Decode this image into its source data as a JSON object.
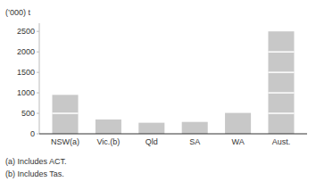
{
  "chart_data": {
    "type": "bar",
    "y_label": "(’000) t",
    "categories": [
      "NSW(a)",
      "Vic.(b)",
      "Qld",
      "SA",
      "WA",
      "Aust."
    ],
    "values": [
      950,
      350,
      270,
      290,
      510,
      2500
    ],
    "segment_lines": [
      [
        500
      ],
      [],
      [],
      [],
      [],
      [
        500,
        1000,
        1500,
        2000
      ]
    ],
    "color": "#c8c8c8",
    "ylim": [
      0,
      2700
    ],
    "yticks": [
      0,
      500,
      1000,
      1500,
      2000,
      2500
    ],
    "grid": false,
    "annotations": [
      "(a) Includes ACT.",
      "(b) Includes Tas."
    ]
  }
}
